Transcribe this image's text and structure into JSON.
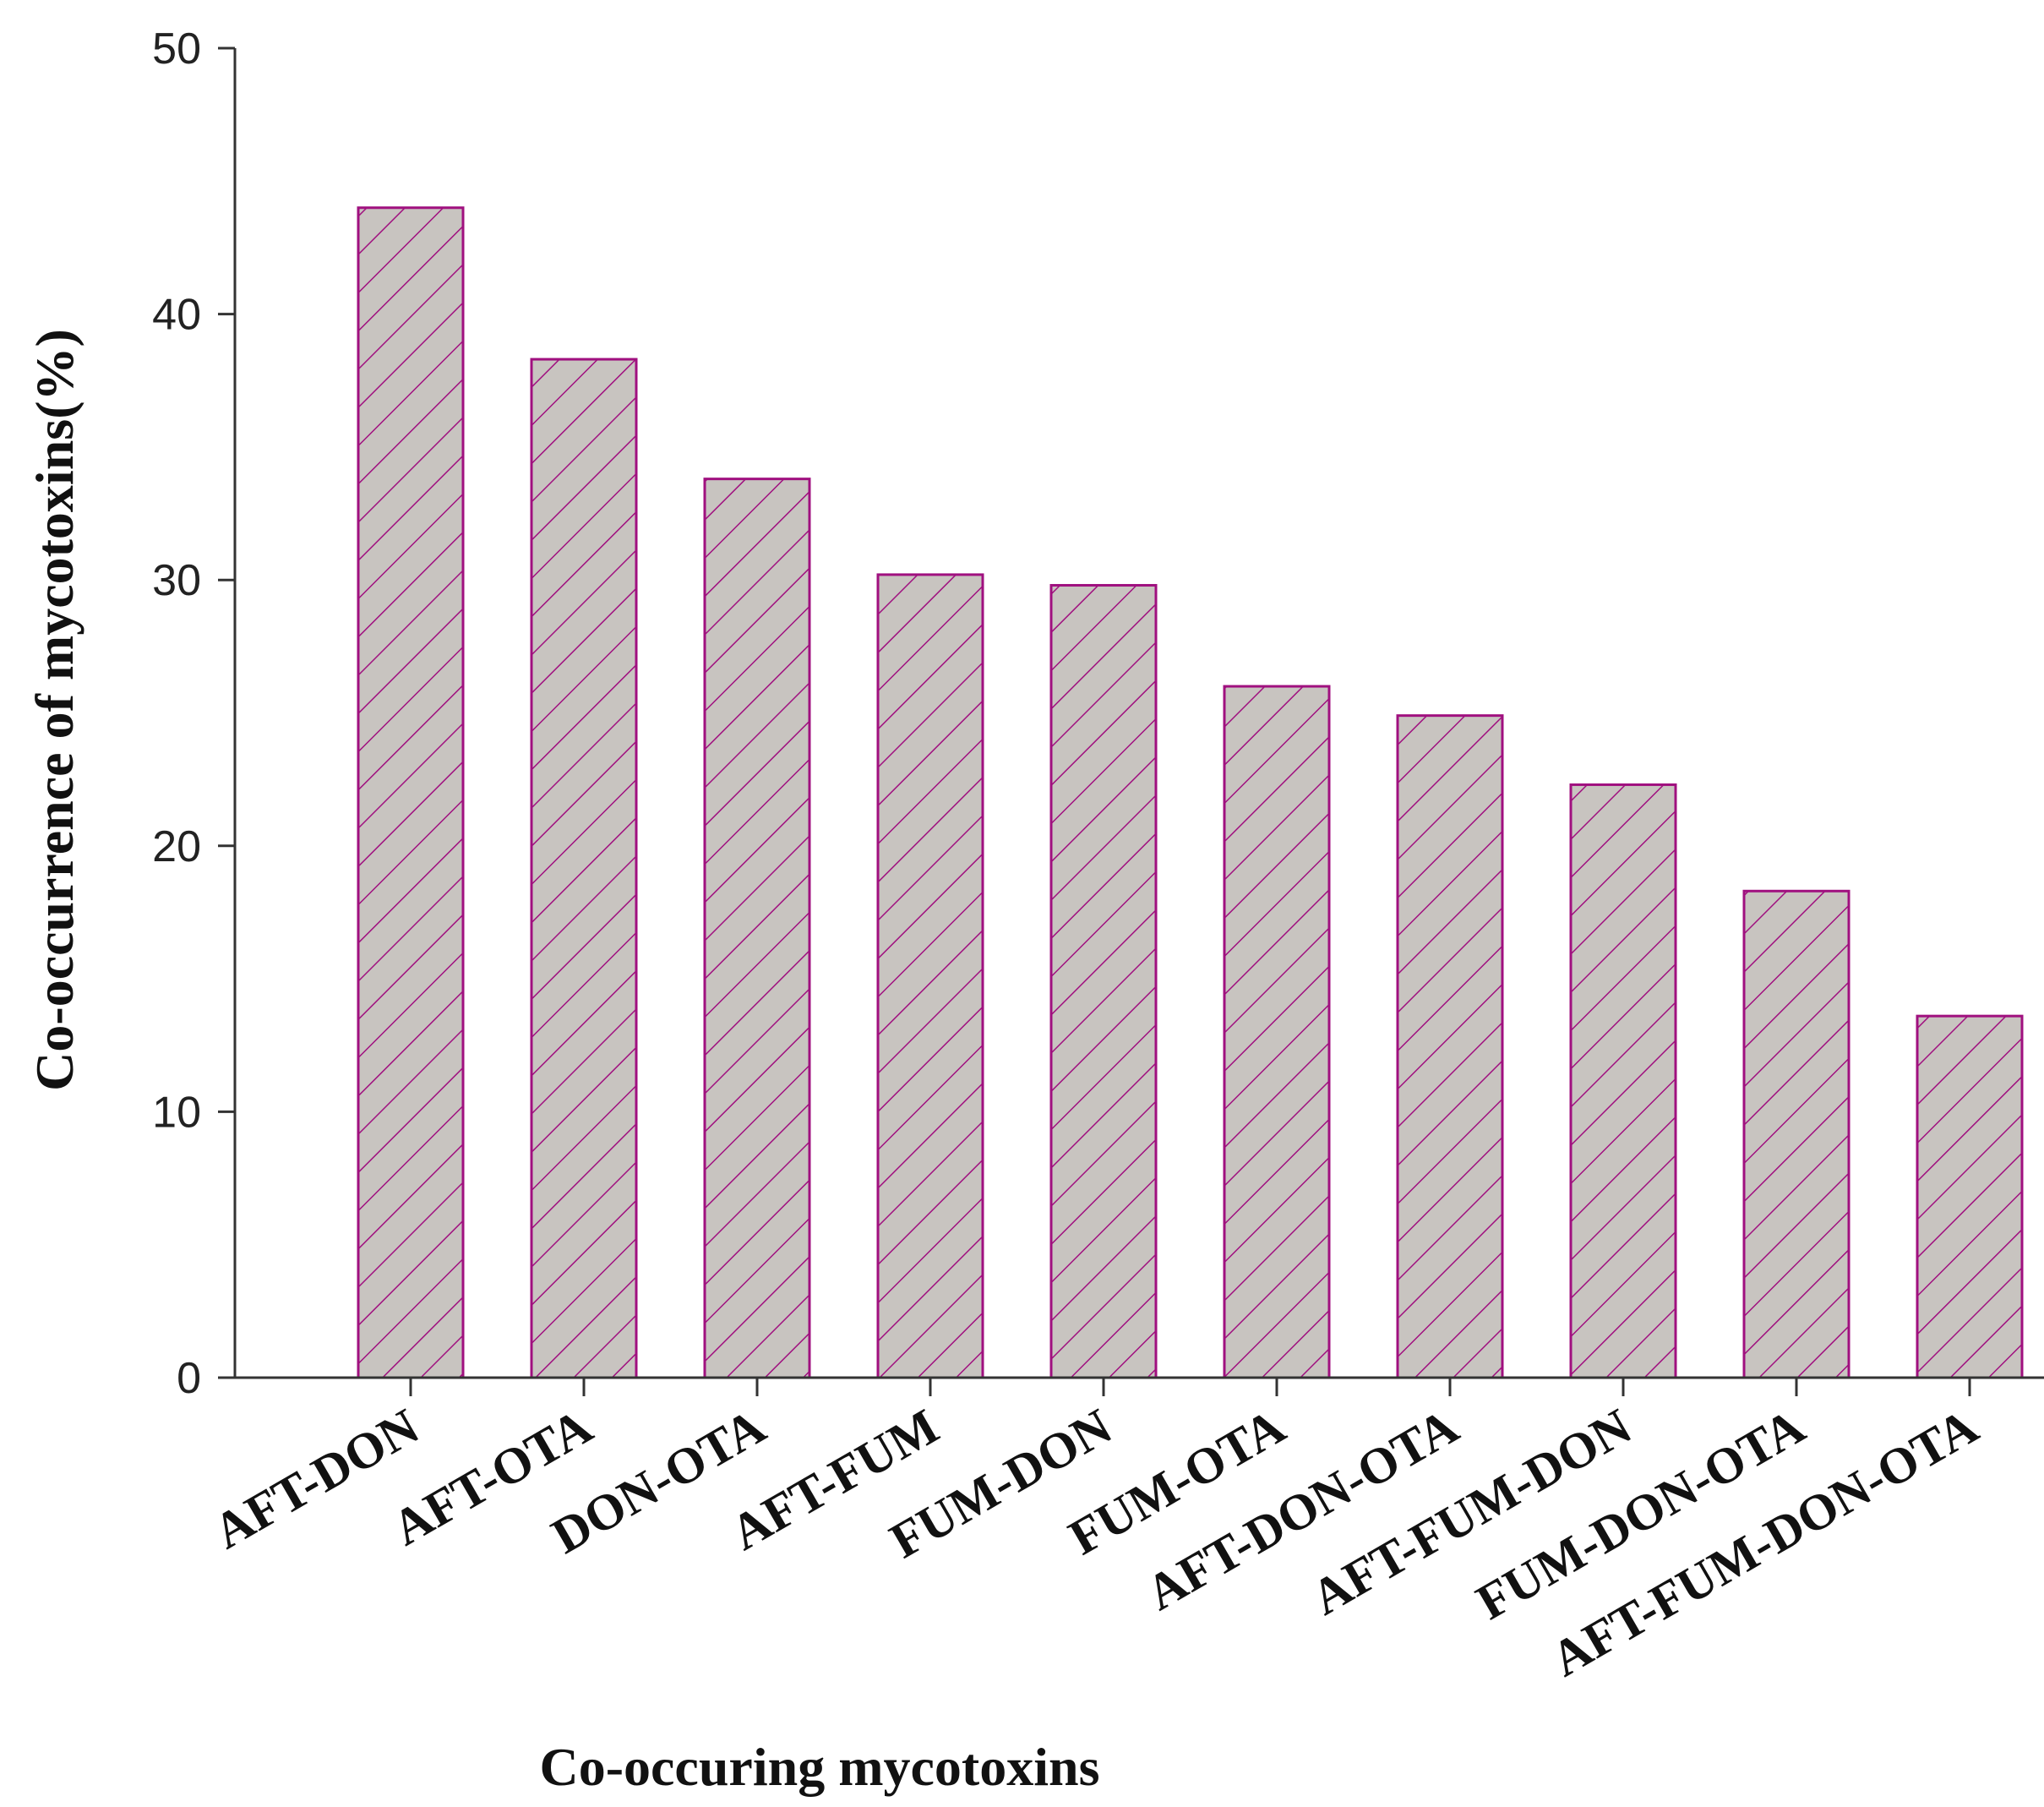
{
  "chart_data": {
    "type": "bar",
    "xlabel": "Co-occuring mycotoxins",
    "ylabel": "Co-occurrence of mycotoxins(%)",
    "ylim": [
      0,
      50
    ],
    "yticks": [
      0,
      10,
      20,
      30,
      40,
      50
    ],
    "categories": [
      "AFT-DON",
      "AFT-OTA",
      "DON-OTA",
      "AFT-FUM",
      "FUM-DON",
      "FUM-OTA",
      "AFT-DON-OTA",
      "AFT-FUM-DON",
      "FUM-DON-OTA",
      "AFT-FUM-DON-OTA"
    ],
    "values": [
      44.0,
      38.3,
      33.8,
      30.2,
      29.8,
      26.0,
      24.9,
      22.3,
      18.3,
      13.6
    ],
    "grid": false,
    "legend": "none",
    "colors": {
      "bar_fill": "#c8c4c0",
      "bar_edge": "#a0107f",
      "hatch": "#a0107f",
      "axis": "#333333"
    },
    "pattern": "diagonal-hatch"
  }
}
